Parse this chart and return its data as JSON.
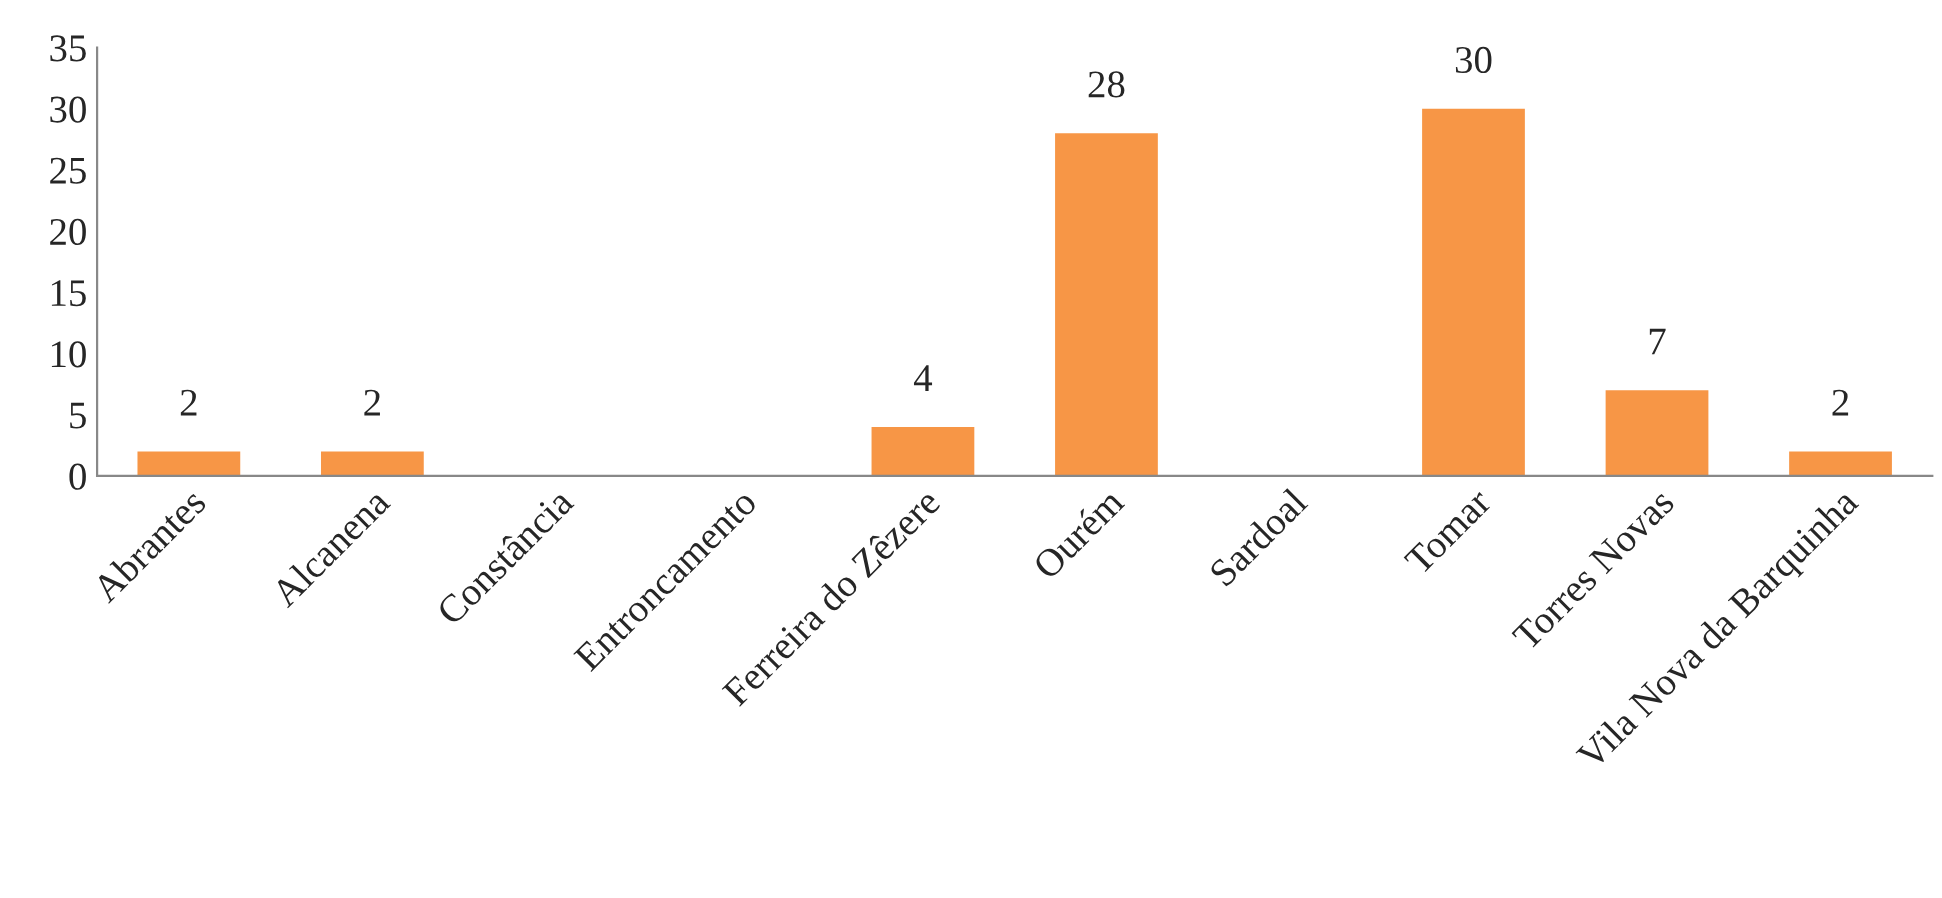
{
  "chart_data": {
    "type": "bar",
    "categories": [
      "Abrantes",
      "Alcanena",
      "Constância",
      "Entroncamento",
      "Ferreira do Zêzere",
      "Ourém",
      "Sardoal",
      "Tomar",
      "Torres Novas",
      "Vila Nova da Barquinha"
    ],
    "values": [
      2,
      2,
      null,
      null,
      4,
      28,
      null,
      30,
      7,
      2
    ],
    "value_labels": [
      "2",
      "2",
      null,
      null,
      "4",
      "28",
      null,
      "30",
      "7",
      "2"
    ],
    "color": "#f79646",
    "ylim": [
      0,
      35
    ],
    "yticks": [
      0,
      5,
      10,
      15,
      20,
      25,
      30,
      35
    ],
    "grid": false,
    "legend": false
  }
}
